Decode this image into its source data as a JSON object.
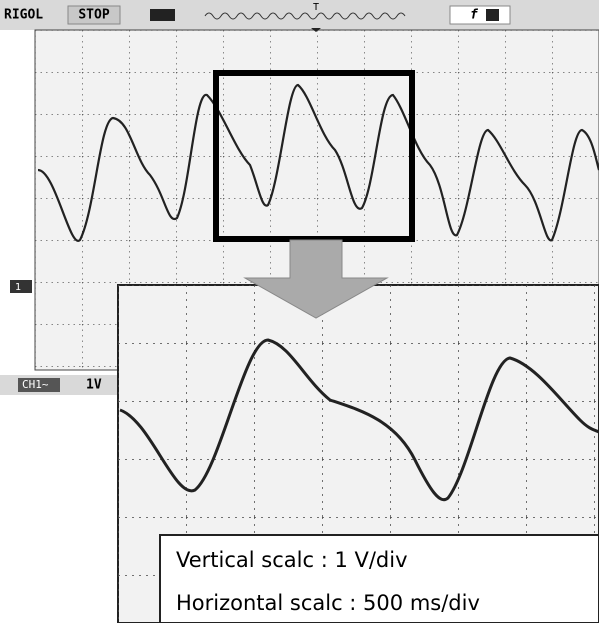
{
  "header": {
    "brand": "RIGOL",
    "state": "STOP",
    "trigger_marker": "T",
    "trigger_edge": "f",
    "channel_marker": "1"
  },
  "status": {
    "channel": "CH1~",
    "volts": "1V"
  },
  "annotation": {
    "vertical": "Vertical scalc : 1 V/div",
    "horizontal": "Horizontal scalc : 500 ms/div"
  }
}
